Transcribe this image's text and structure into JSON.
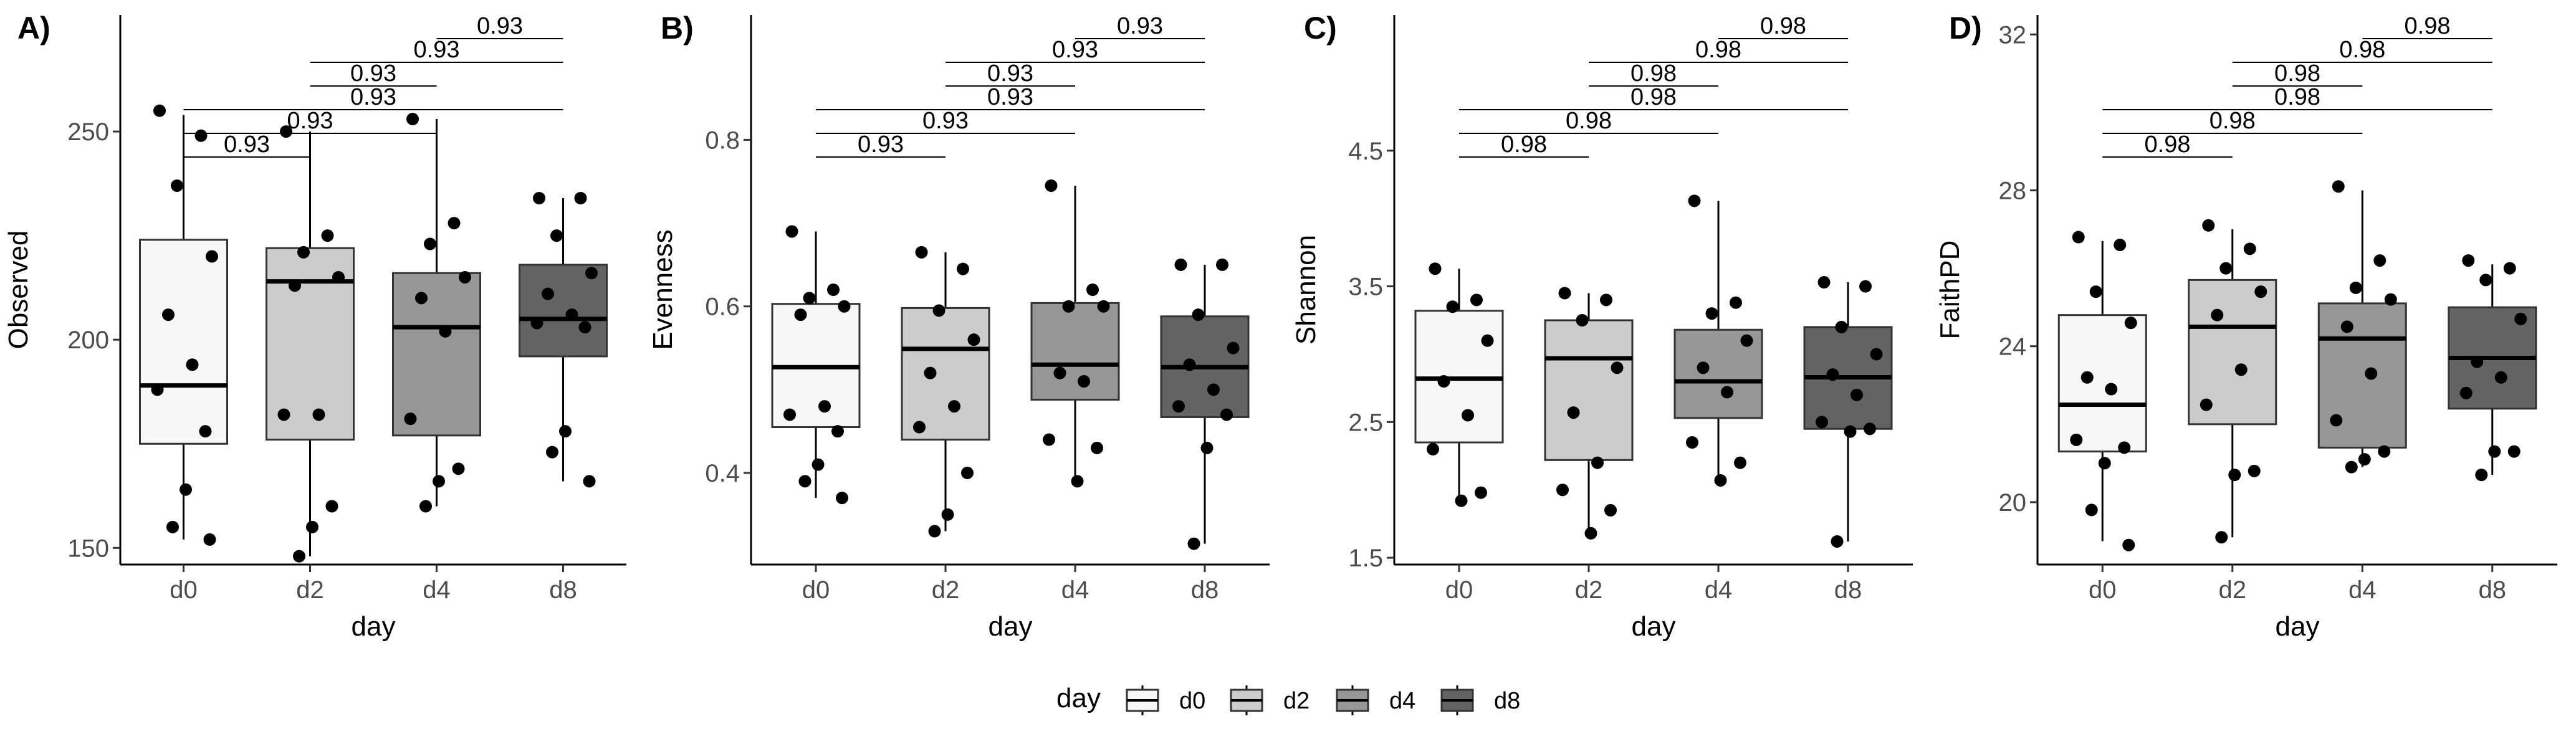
{
  "legend": {
    "title": "day",
    "items": [
      {
        "label": "d0",
        "fill": "#f7f7f7"
      },
      {
        "label": "d2",
        "fill": "#cccccc"
      },
      {
        "label": "d4",
        "fill": "#969696"
      },
      {
        "label": "d8",
        "fill": "#636363"
      }
    ]
  },
  "chart_data": [
    {
      "type": "boxplot",
      "panel": "A)",
      "xlabel": "day",
      "ylabel": "Observed",
      "ylim": [
        146,
        278
      ],
      "yticks": [
        150,
        200,
        250
      ],
      "categories": [
        "d0",
        "d2",
        "d4",
        "d8"
      ],
      "boxes": [
        {
          "q1": 175,
          "median": 189,
          "q3": 224,
          "whisker_low": 152,
          "whisker_high": 254
        },
        {
          "q1": 176,
          "median": 214,
          "q3": 222,
          "whisker_low": 148,
          "whisker_high": 250
        },
        {
          "q1": 177,
          "median": 203,
          "q3": 216,
          "whisker_low": 160,
          "whisker_high": 253
        },
        {
          "q1": 196,
          "median": 205,
          "q3": 218,
          "whisker_low": 166,
          "whisker_high": 234
        }
      ],
      "points": [
        [
          255,
          249,
          237,
          220,
          206,
          194,
          188,
          178,
          164,
          155,
          152
        ],
        [
          250,
          225,
          221,
          215,
          213,
          182,
          182,
          160,
          155,
          148
        ],
        [
          253,
          228,
          223,
          215,
          210,
          202,
          181,
          169,
          166,
          160
        ],
        [
          234,
          234,
          225,
          216,
          211,
          206,
          204,
          203,
          178,
          173,
          166
        ]
      ],
      "comparisons": [
        {
          "pair": [
            "d0",
            "d2"
          ],
          "p": "0.93"
        },
        {
          "pair": [
            "d0",
            "d4"
          ],
          "p": "0.93"
        },
        {
          "pair": [
            "d0",
            "d8"
          ],
          "p": "0.93"
        },
        {
          "pair": [
            "d2",
            "d4"
          ],
          "p": "0.93"
        },
        {
          "pair": [
            "d2",
            "d8"
          ],
          "p": "0.93"
        },
        {
          "pair": [
            "d4",
            "d8"
          ],
          "p": "0.93"
        }
      ]
    },
    {
      "type": "boxplot",
      "panel": "B)",
      "xlabel": "day",
      "ylabel": "Evenness",
      "ylim": [
        0.29,
        0.95
      ],
      "yticks": [
        0.4,
        0.6,
        0.8
      ],
      "ytick_labels": [
        "0.4",
        "0.6",
        "0.8"
      ],
      "categories": [
        "d0",
        "d2",
        "d4",
        "d8"
      ],
      "boxes": [
        {
          "q1": 0.455,
          "median": 0.527,
          "q3": 0.603,
          "whisker_low": 0.37,
          "whisker_high": 0.69
        },
        {
          "q1": 0.44,
          "median": 0.549,
          "q3": 0.598,
          "whisker_low": 0.33,
          "whisker_high": 0.665
        },
        {
          "q1": 0.488,
          "median": 0.53,
          "q3": 0.604,
          "whisker_low": 0.39,
          "whisker_high": 0.745
        },
        {
          "q1": 0.467,
          "median": 0.527,
          "q3": 0.588,
          "whisker_low": 0.315,
          "whisker_high": 0.65
        }
      ],
      "points": [
        [
          0.69,
          0.62,
          0.61,
          0.6,
          0.59,
          0.48,
          0.47,
          0.45,
          0.41,
          0.39,
          0.37
        ],
        [
          0.665,
          0.645,
          0.595,
          0.56,
          0.52,
          0.48,
          0.455,
          0.4,
          0.35,
          0.33
        ],
        [
          0.745,
          0.62,
          0.6,
          0.6,
          0.52,
          0.51,
          0.44,
          0.43,
          0.39
        ],
        [
          0.65,
          0.65,
          0.59,
          0.55,
          0.53,
          0.5,
          0.48,
          0.47,
          0.43,
          0.315
        ]
      ],
      "comparisons": [
        {
          "pair": [
            "d0",
            "d2"
          ],
          "p": "0.93"
        },
        {
          "pair": [
            "d0",
            "d4"
          ],
          "p": "0.93"
        },
        {
          "pair": [
            "d0",
            "d8"
          ],
          "p": "0.93"
        },
        {
          "pair": [
            "d2",
            "d4"
          ],
          "p": "0.93"
        },
        {
          "pair": [
            "d2",
            "d8"
          ],
          "p": "0.93"
        },
        {
          "pair": [
            "d4",
            "d8"
          ],
          "p": "0.93"
        }
      ]
    },
    {
      "type": "boxplot",
      "panel": "C)",
      "xlabel": "day",
      "ylabel": "Shannon",
      "ylim": [
        1.45,
        5.5
      ],
      "yticks": [
        1.5,
        2.5,
        3.5,
        4.5
      ],
      "ytick_labels": [
        "1.5",
        "2.5",
        "3.5",
        "4.5"
      ],
      "categories": [
        "d0",
        "d2",
        "d4",
        "d8"
      ],
      "boxes": [
        {
          "q1": 2.35,
          "median": 2.82,
          "q3": 3.32,
          "whisker_low": 1.9,
          "whisker_high": 3.63
        },
        {
          "q1": 2.22,
          "median": 2.97,
          "q3": 3.25,
          "whisker_low": 1.67,
          "whisker_high": 3.45
        },
        {
          "q1": 2.53,
          "median": 2.8,
          "q3": 3.18,
          "whisker_low": 2.07,
          "whisker_high": 4.13
        },
        {
          "q1": 2.45,
          "median": 2.83,
          "q3": 3.2,
          "whisker_low": 1.62,
          "whisker_high": 3.53
        }
      ],
      "points": [
        [
          3.63,
          3.4,
          3.35,
          3.1,
          2.8,
          2.55,
          2.3,
          1.98,
          1.92
        ],
        [
          3.45,
          3.4,
          3.25,
          2.9,
          2.57,
          2.2,
          2.0,
          1.85,
          1.68
        ],
        [
          4.13,
          3.38,
          3.3,
          3.1,
          2.9,
          2.72,
          2.35,
          2.2,
          2.07
        ],
        [
          3.53,
          3.5,
          3.2,
          3.0,
          2.85,
          2.7,
          2.5,
          2.45,
          2.43,
          1.62
        ]
      ],
      "comparisons": [
        {
          "pair": [
            "d0",
            "d2"
          ],
          "p": "0.98"
        },
        {
          "pair": [
            "d0",
            "d4"
          ],
          "p": "0.98"
        },
        {
          "pair": [
            "d0",
            "d8"
          ],
          "p": "0.98"
        },
        {
          "pair": [
            "d2",
            "d4"
          ],
          "p": "0.98"
        },
        {
          "pair": [
            "d2",
            "d8"
          ],
          "p": "0.98"
        },
        {
          "pair": [
            "d4",
            "d8"
          ],
          "p": "0.98"
        }
      ]
    },
    {
      "type": "boxplot",
      "panel": "D)",
      "xlabel": "day",
      "ylabel": "FaithPD",
      "ylim": [
        18.4,
        32.5
      ],
      "yticks": [
        20,
        24,
        28,
        32
      ],
      "categories": [
        "d0",
        "d2",
        "d4",
        "d8"
      ],
      "boxes": [
        {
          "q1": 21.3,
          "median": 22.5,
          "q3": 24.8,
          "whisker_low": 19.0,
          "whisker_high": 26.7
        },
        {
          "q1": 22.0,
          "median": 24.5,
          "q3": 25.7,
          "whisker_low": 19.1,
          "whisker_high": 27.0
        },
        {
          "q1": 21.4,
          "median": 24.2,
          "q3": 25.1,
          "whisker_low": 20.9,
          "whisker_high": 28.0
        },
        {
          "q1": 22.4,
          "median": 23.7,
          "q3": 25.0,
          "whisker_low": 20.7,
          "whisker_high": 26.1
        }
      ],
      "points": [
        [
          26.8,
          26.6,
          25.4,
          24.6,
          23.2,
          22.9,
          21.6,
          21.4,
          21.0,
          19.8,
          18.9
        ],
        [
          27.1,
          26.5,
          26.0,
          25.4,
          24.8,
          23.4,
          22.5,
          20.8,
          20.7,
          19.1
        ],
        [
          28.1,
          26.2,
          25.5,
          25.2,
          24.5,
          23.3,
          22.1,
          21.3,
          21.1,
          20.9
        ],
        [
          26.2,
          26.0,
          25.7,
          24.7,
          23.6,
          23.2,
          22.8,
          21.3,
          21.3,
          20.7
        ]
      ],
      "comparisons": [
        {
          "pair": [
            "d0",
            "d2"
          ],
          "p": "0.98"
        },
        {
          "pair": [
            "d0",
            "d4"
          ],
          "p": "0.98"
        },
        {
          "pair": [
            "d0",
            "d8"
          ],
          "p": "0.98"
        },
        {
          "pair": [
            "d2",
            "d4"
          ],
          "p": "0.98"
        },
        {
          "pair": [
            "d2",
            "d8"
          ],
          "p": "0.98"
        },
        {
          "pair": [
            "d4",
            "d8"
          ],
          "p": "0.98"
        }
      ]
    }
  ]
}
